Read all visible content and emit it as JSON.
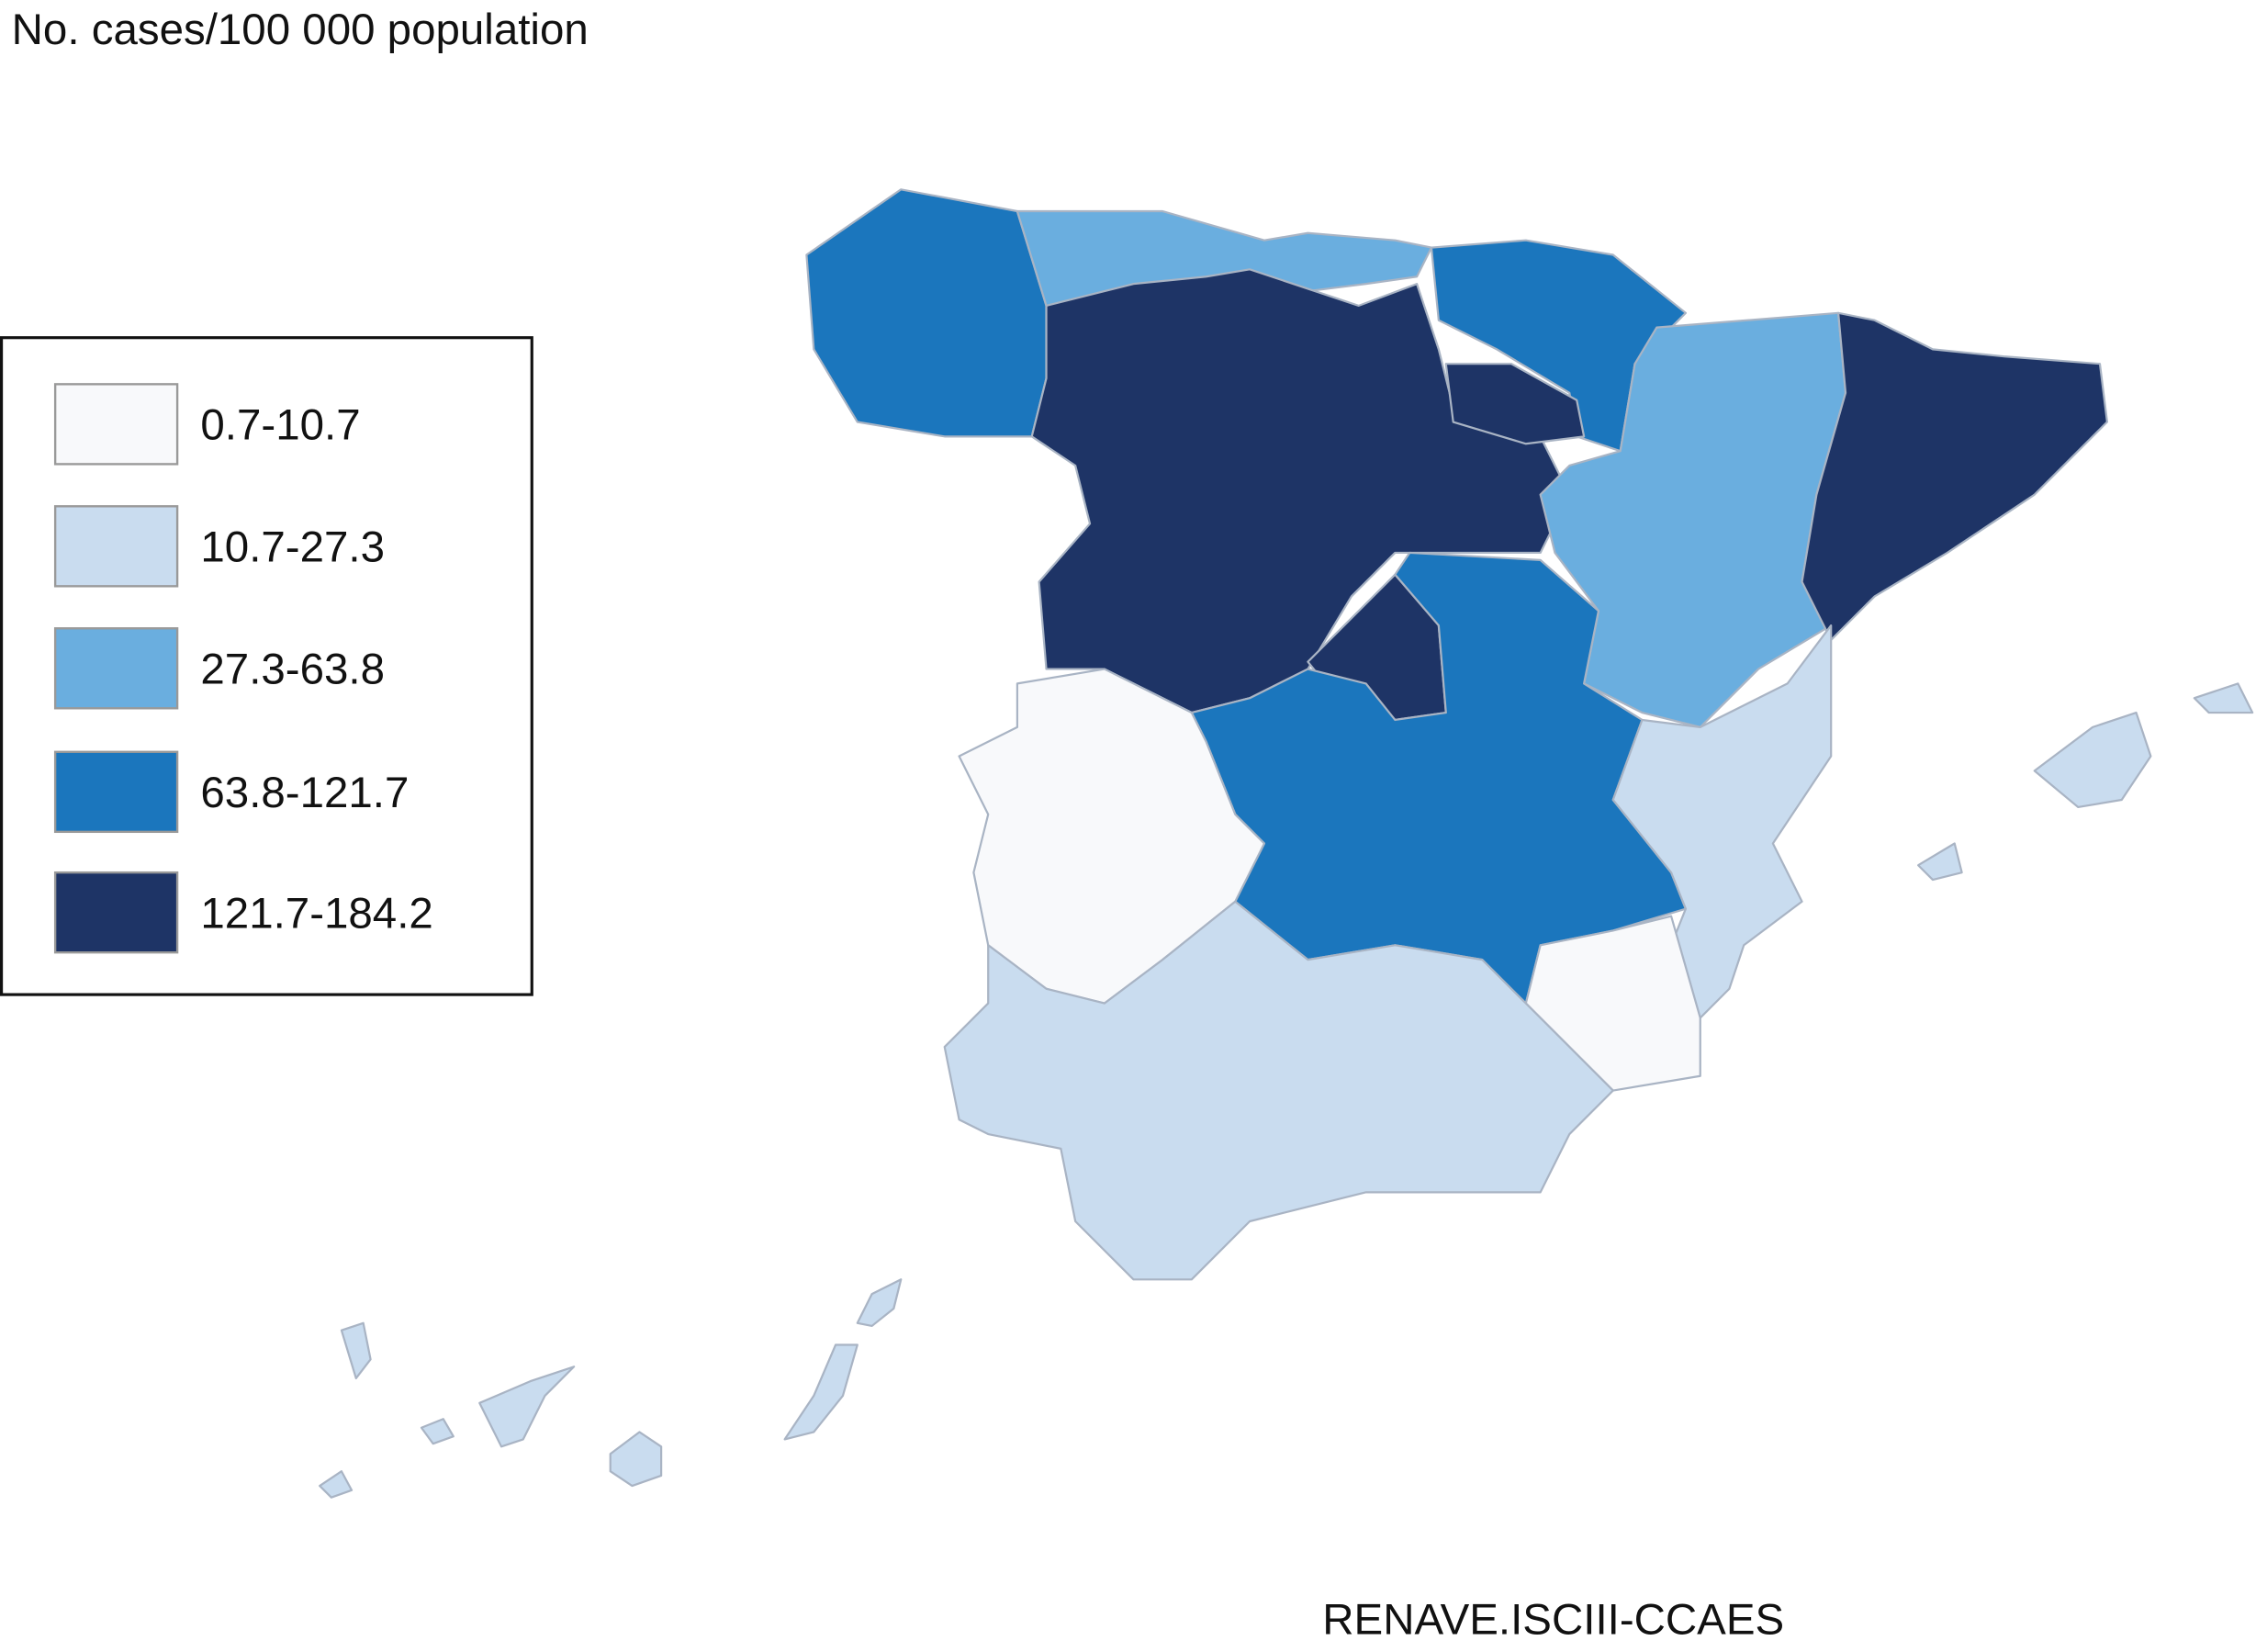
{
  "title": "No. cases/100 000 population",
  "legend": [
    {
      "label": "0.7-10.7",
      "color": "#f8f9fb"
    },
    {
      "label": "10.7-27.3",
      "color": "#c9dcef"
    },
    {
      "label": "27.3-63.8",
      "color": "#6aaedf"
    },
    {
      "label": "63.8-121.7",
      "color": "#1b76bd"
    },
    {
      "label": "121.7-184.2",
      "color": "#1e3466"
    }
  ],
  "source": "RENAVE.ISCIII-CCAES"
}
